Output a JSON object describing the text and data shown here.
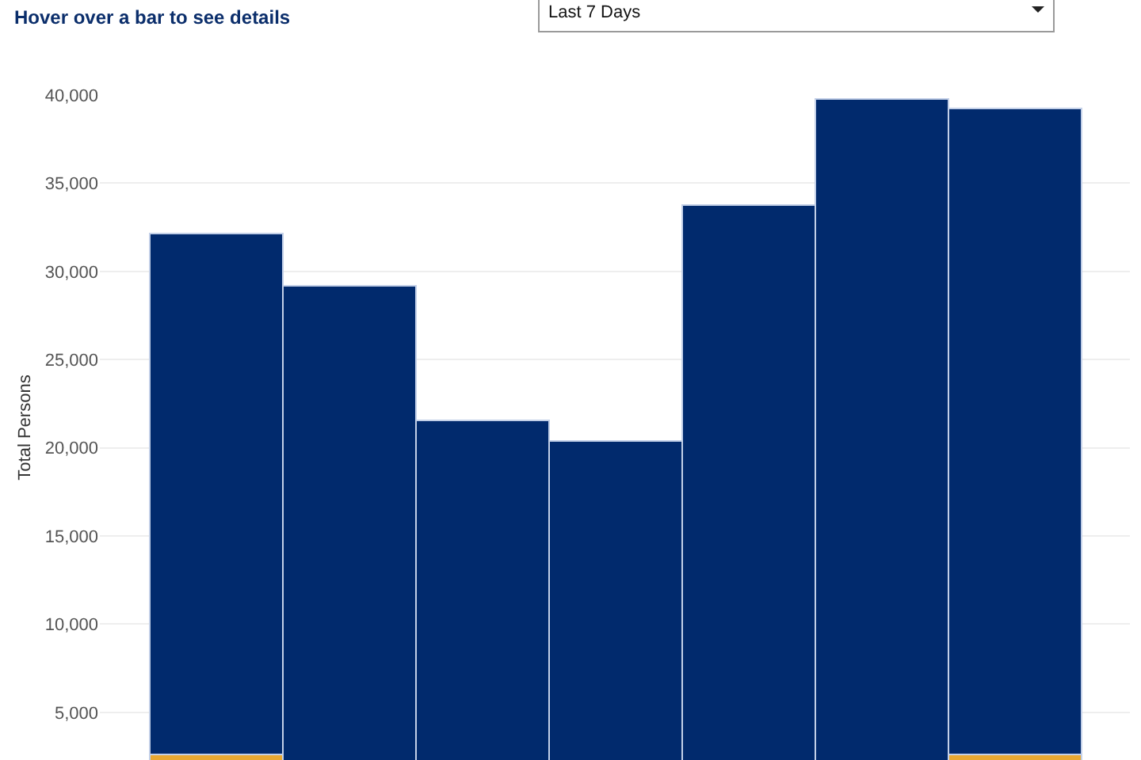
{
  "chart_data": {
    "type": "bar",
    "title": "Hover over a bar to see details",
    "ylabel": "Total Persons",
    "annotations": [
      "Last 7 Days"
    ],
    "categories": [
      null,
      null,
      null,
      null,
      null,
      null,
      null
    ],
    "stacked": true,
    "series": [
      {
        "color": "#e8a832",
        "values": [
          2600,
          null,
          null,
          null,
          null,
          null,
          2600
        ]
      },
      {
        "color": "#012a6d",
        "values": [
          29500,
          29100,
          21500,
          20300,
          33700,
          39700,
          36600
        ]
      }
    ],
    "ylim": [
      2300,
      40000
    ],
    "yticks": [
      {
        "value": 5000,
        "label": "5,000"
      },
      {
        "value": 10000,
        "label": "10,000"
      },
      {
        "value": 15000,
        "label": "15,000"
      },
      {
        "value": 20000,
        "label": "20,000"
      },
      {
        "value": 25000,
        "label": "25,000"
      },
      {
        "value": 30000,
        "label": "30,000"
      },
      {
        "value": 35000,
        "label": "35,000"
      },
      {
        "value": 40000,
        "label": "40,000"
      }
    ],
    "grid": "y",
    "tick_labels": "y"
  }
}
